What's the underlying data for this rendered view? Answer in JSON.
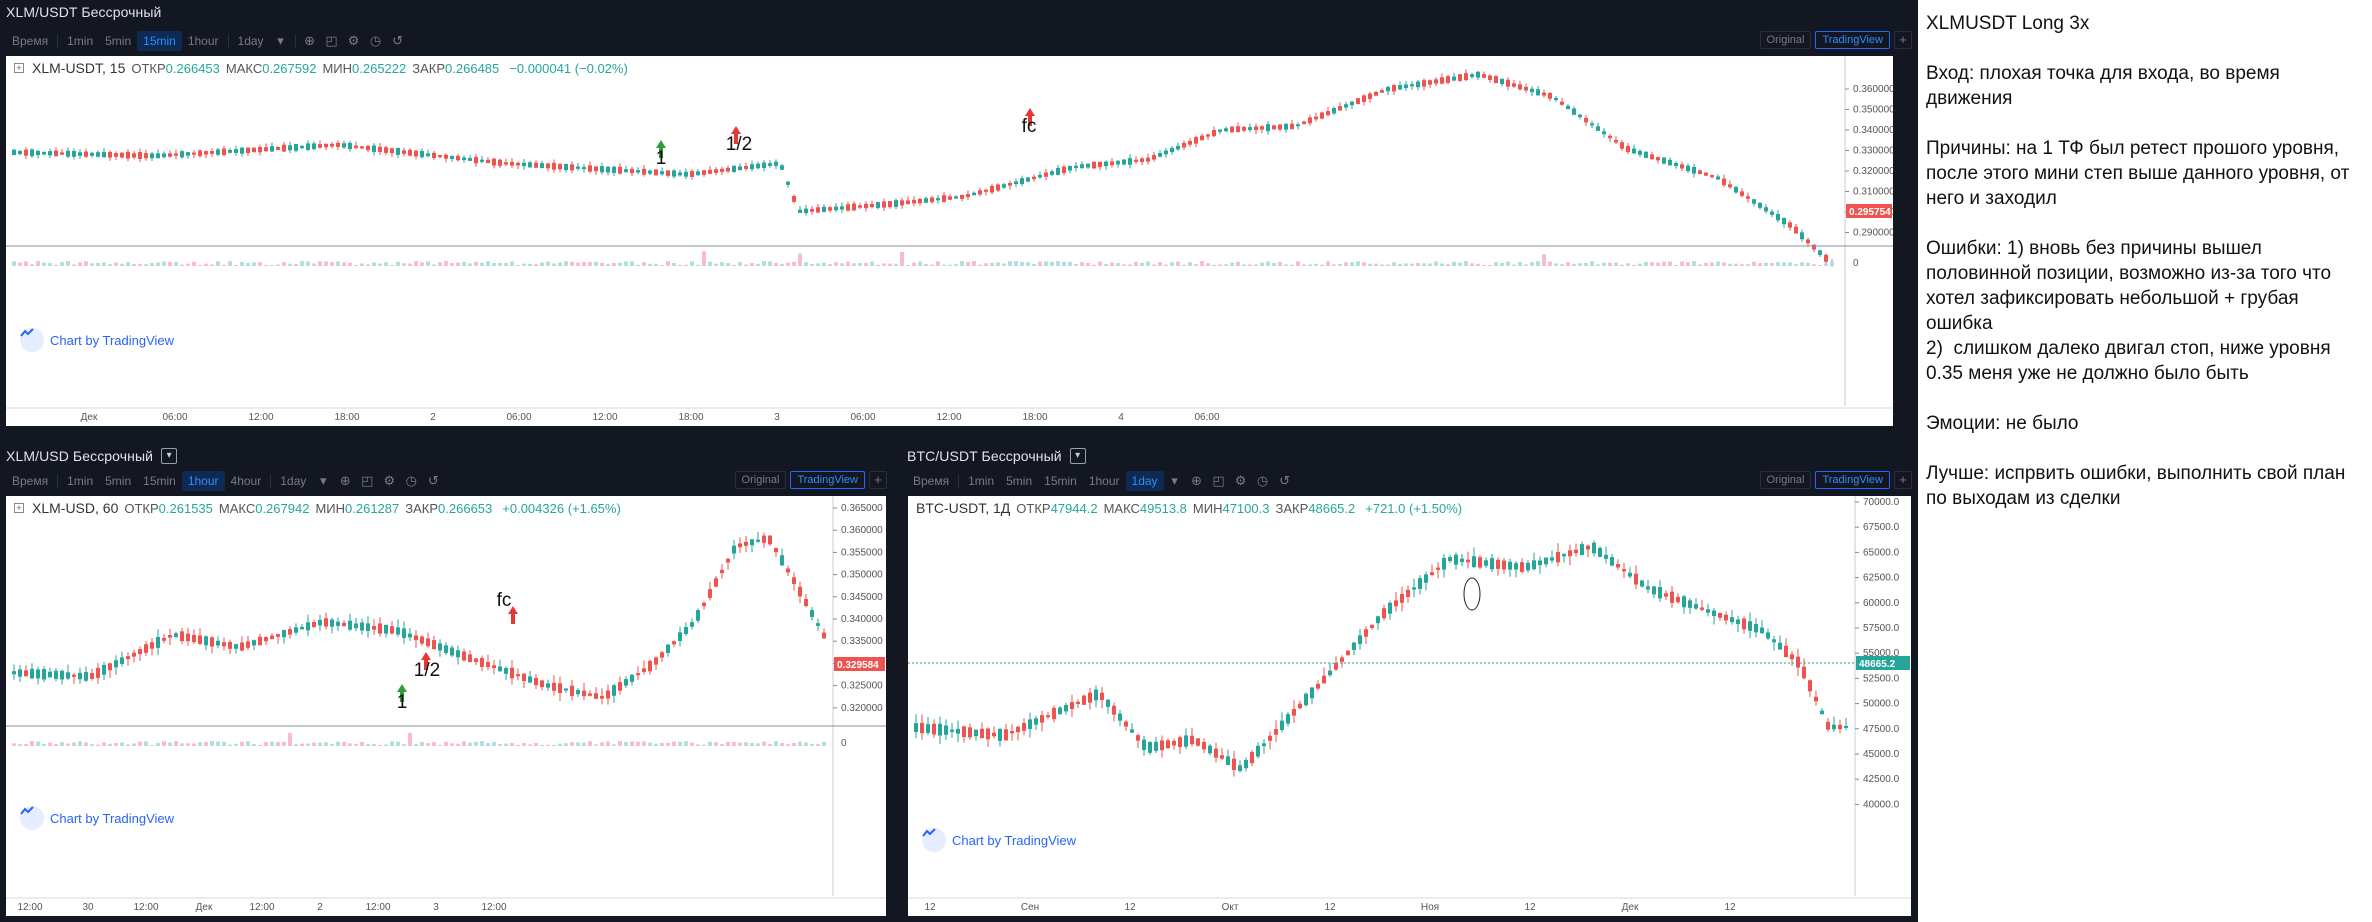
{
  "colors": {
    "up": "#26a69a",
    "down": "#ef5350",
    "ui_bg": "#131722",
    "accent": "#2962ff",
    "current_line": "#26a69a"
  },
  "panels": [
    {
      "id": "top",
      "title": "XLM/USDT Бессрочный",
      "has_check": false,
      "toolbar": {
        "time_label": "Время",
        "intervals": [
          "1min",
          "5min",
          "15min",
          "1hour",
          "1day"
        ],
        "active": "15min",
        "original_label": "Original",
        "tradingview_label": "TradingView"
      },
      "legend": {
        "symbol": "XLM-USDT, 15",
        "open_label": "ОТКР",
        "open": "0.266453",
        "high_label": "МАКС",
        "high": "0.267592",
        "low_label": "МИН",
        "low": "0.265222",
        "close_label": "ЗАКР",
        "close": "0.266485",
        "change": "−0.000041 (−0.02%)"
      },
      "brand": "Chart by TradingView",
      "price_labels": [
        "0.360000",
        "0.350000",
        "0.340000",
        "0.330000",
        "0.320000",
        "0.310000",
        "0.300000",
        "0.290000"
      ],
      "current_price": "0.295754",
      "volume_zero": "0",
      "time_labels": [
        "Дек",
        "06:00",
        "12:00",
        "18:00",
        "2",
        "06:00",
        "12:00",
        "18:00",
        "3",
        "06:00",
        "12:00",
        "18:00",
        "4",
        "06:00"
      ],
      "annotations": [
        {
          "text": "1",
          "color": "green"
        },
        {
          "text": "1/2",
          "color": "red"
        },
        {
          "text": "fc",
          "color": "red"
        }
      ]
    },
    {
      "id": "bottom-left",
      "title": "XLM/USD Бессрочный",
      "has_check": true,
      "toolbar": {
        "time_label": "Время",
        "intervals": [
          "1min",
          "5min",
          "15min",
          "1hour",
          "4hour",
          "1day"
        ],
        "active": "1hour",
        "original_label": "Original",
        "tradingview_label": "TradingView"
      },
      "legend": {
        "symbol": "XLM-USD, 60",
        "open_label": "ОТКР",
        "open": "0.261535",
        "high_label": "МАКС",
        "high": "0.267942",
        "low_label": "МИН",
        "low": "0.261287",
        "close_label": "ЗАКР",
        "close": "0.266653",
        "change": "+0.004326 (+1.65%)"
      },
      "brand": "Chart by TradingView",
      "price_labels": [
        "0.365000",
        "0.360000",
        "0.355000",
        "0.350000",
        "0.345000",
        "0.340000",
        "0.335000",
        "0.330000",
        "0.325000",
        "0.320000"
      ],
      "current_price": "0.329584",
      "volume_zero": "0",
      "time_labels": [
        "12:00",
        "30",
        "12:00",
        "Дек",
        "12:00",
        "2",
        "12:00",
        "3",
        "12:00"
      ],
      "annotations": [
        {
          "text": "1",
          "color": "green"
        },
        {
          "text": "1/2",
          "color": "red"
        },
        {
          "text": "fc",
          "color": "red"
        }
      ]
    },
    {
      "id": "bottom-right",
      "title": "BTC/USDT Бессрочный",
      "has_check": true,
      "toolbar": {
        "time_label": "Время",
        "intervals": [
          "1min",
          "5min",
          "15min",
          "1hour",
          "1day"
        ],
        "active": "1day",
        "original_label": "Original",
        "tradingview_label": "TradingView"
      },
      "legend": {
        "symbol": "BTC-USDT, 1Д",
        "open_label": "ОТКР",
        "open": "47944.2",
        "high_label": "МАКС",
        "high": "49513.8",
        "low_label": "МИН",
        "low": "47100.3",
        "close_label": "ЗАКР",
        "close": "48665.2",
        "change": "+721.0 (+1.50%)"
      },
      "brand": "Chart by TradingView",
      "price_labels": [
        "70000.0",
        "67500.0",
        "65000.0",
        "62500.0",
        "60000.0",
        "57500.0",
        "55000.0",
        "52500.0",
        "50000.0",
        "47500.0",
        "45000.0",
        "42500.0",
        "40000.0"
      ],
      "current_price": "48665.2",
      "time_labels": [
        "12",
        "Сен",
        "12",
        "Окт",
        "12",
        "Ноя",
        "12",
        "Дек",
        "12"
      ],
      "annotations": []
    }
  ],
  "notes": {
    "title": "XLMUSDT Long 3x",
    "entry": "Вход: плохая точка для входа, во время движения",
    "reasons": "Причины: на 1 ТФ был ретест прошого уровня, после этого мини степ выше данного уровня, от него и заходил",
    "errors": "Ошибки: 1) вновь без причины вышел половинной позиции, возможно из-за того что хотел зафиксировать небольшой + грубая ошибка\n2)  слишком далеко двигал стоп, ниже уровня 0.35 меня уже не должно было быть",
    "emotions": "Эмоции: не было",
    "better": "Лучше: испрвить ошибки, выполнить свой план по выходам из сделки"
  }
}
